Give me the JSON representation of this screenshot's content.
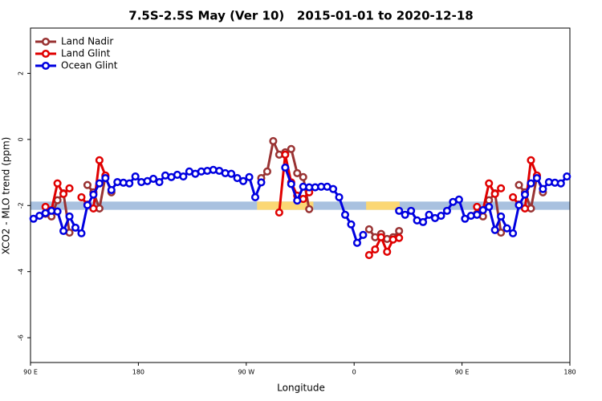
{
  "chart_data": {
    "type": "line",
    "title": "7.5S-2.5S May (Ver 10)   2015-01-01 to 2020-12-18",
    "x_label": "Longitude",
    "y_label": "XCO2 - MLO trend (ppm)",
    "xlim": [
      90,
      540
    ],
    "ylim": [
      -6.75,
      3.37
    ],
    "xticks": [
      {
        "value": 90,
        "label": "90 E"
      },
      {
        "value": 180,
        "label": "180"
      },
      {
        "value": 270,
        "label": "90 W"
      },
      {
        "value": 360,
        "label": "0"
      },
      {
        "value": 450,
        "label": "90 E"
      },
      {
        "value": 540,
        "label": "180"
      }
    ],
    "yticks": [
      -6,
      -4,
      -2,
      0,
      2
    ],
    "legend": "top-left",
    "bands": [
      {
        "from": 90,
        "to": 540,
        "y": [
          -2.13,
          -1.88
        ],
        "color": "#a9c1df"
      },
      {
        "from": 279,
        "to": 326,
        "y": [
          -2.13,
          -1.88
        ],
        "color": "#fbd774"
      },
      {
        "from": 370,
        "to": 398,
        "y": [
          -2.13,
          -1.88
        ],
        "color": "#fbd774"
      }
    ],
    "series": [
      {
        "name": "Land Nadir",
        "color": "#993333",
        "x": [
          102.5,
          107.5,
          112.5,
          117.5,
          122.5,
          127.5,
          137.5,
          142.5,
          147.5,
          152.5,
          157.5,
          162.5,
          282.5,
          287.5,
          292.5,
          297.5,
          302.5,
          307.5,
          312.5,
          317.5,
          322.5,
          327.5,
          372.5,
          377.5,
          382.5,
          387.5,
          392.5,
          397.5,
          402.5,
          462.5,
          467.5,
          472.5,
          477.5,
          482.5,
          487.5,
          497.5,
          502.5,
          507.5,
          512.5,
          517.5
        ],
        "values": [
          -2.25,
          -2.33,
          -1.84,
          -1.63,
          -2.82,
          null,
          -1.38,
          -1.6,
          -2.09,
          -1.12,
          -1.6,
          null,
          -1.17,
          -0.97,
          -0.05,
          -0.46,
          -0.39,
          -0.29,
          -1.02,
          -1.14,
          -2.11,
          null,
          -2.72,
          -2.96,
          -2.86,
          -3.01,
          -2.96,
          -2.77,
          null,
          -2.25,
          -2.33,
          -1.84,
          -1.63,
          -2.82,
          null,
          -1.38,
          -1.6,
          -2.09,
          -1.12,
          -1.6
        ]
      },
      {
        "name": "Land Glint",
        "color": "#e00000",
        "x": [
          102.5,
          107.5,
          112.5,
          117.5,
          122.5,
          127.5,
          132.5,
          137.5,
          142.5,
          147.5,
          152.5,
          157.5,
          297.5,
          302.5,
          307.5,
          312.5,
          317.5,
          322.5,
          327.5,
          372.5,
          377.5,
          382.5,
          387.5,
          392.5,
          397.5,
          402.5,
          462.5,
          467.5,
          472.5,
          477.5,
          482.5,
          487.5,
          492.5,
          497.5,
          502.5,
          507.5,
          512.5
        ],
        "values": [
          -2.04,
          -2.14,
          -1.33,
          -1.65,
          -1.48,
          null,
          -1.75,
          -1.97,
          -2.09,
          -0.63,
          -1.09,
          null,
          -2.21,
          -0.46,
          -1.3,
          -1.7,
          -1.8,
          -1.6,
          null,
          -3.5,
          -3.33,
          -2.96,
          -3.4,
          -3.03,
          -2.98,
          null,
          -2.04,
          -2.14,
          -1.33,
          -1.65,
          -1.48,
          null,
          -1.75,
          -1.97,
          -2.09,
          -0.63,
          -1.09
        ]
      },
      {
        "name": "Ocean Glint",
        "color": "#0000e0",
        "x": [
          92.5,
          97.5,
          102.5,
          107.5,
          112.5,
          117.5,
          122.5,
          127.5,
          132.5,
          137.5,
          142.5,
          147.5,
          152.5,
          157.5,
          162.5,
          167.5,
          172.5,
          177.5,
          182.5,
          187.5,
          192.5,
          197.5,
          202.5,
          207.5,
          212.5,
          217.5,
          222.5,
          227.5,
          232.5,
          237.5,
          242.5,
          247.5,
          252.5,
          257.5,
          262.5,
          267.5,
          272.5,
          277.5,
          282.5,
          287.5,
          302.5,
          307.5,
          312.5,
          317.5,
          322.5,
          327.5,
          332.5,
          337.5,
          342.5,
          347.5,
          352.5,
          357.5,
          362.5,
          367.5,
          372.5,
          397.5,
          402.5,
          407.5,
          412.5,
          417.5,
          422.5,
          427.5,
          432.5,
          437.5,
          442.5,
          447.5,
          452.5,
          457.5,
          462.5,
          467.5,
          472.5,
          477.5,
          482.5,
          487.5,
          492.5,
          497.5,
          502.5,
          507.5,
          512.5,
          517.5,
          522.5,
          527.5,
          532.5,
          537.5
        ],
        "values": [
          -2.4,
          -2.31,
          -2.23,
          -2.16,
          -2.18,
          -2.77,
          -2.33,
          -2.67,
          -2.84,
          -1.99,
          -1.67,
          -1.33,
          -1.17,
          -1.53,
          -1.29,
          -1.31,
          -1.33,
          -1.12,
          -1.29,
          -1.26,
          -1.19,
          -1.29,
          -1.09,
          -1.14,
          -1.07,
          -1.12,
          -0.97,
          -1.04,
          -0.97,
          -0.95,
          -0.92,
          -0.95,
          -1.02,
          -1.04,
          -1.17,
          -1.26,
          -1.14,
          -1.75,
          -1.3,
          null,
          -0.85,
          -1.35,
          -1.85,
          -1.43,
          -1.45,
          -1.45,
          -1.43,
          -1.43,
          -1.5,
          -1.75,
          -2.28,
          -2.57,
          -3.13,
          -2.89,
          null,
          -2.16,
          -2.28,
          -2.16,
          -2.45,
          -2.5,
          -2.28,
          -2.38,
          -2.31,
          -2.16,
          -1.89,
          -1.82,
          -2.4,
          -2.31,
          -2.28,
          -2.14,
          -2.04,
          -2.74,
          -2.33,
          -2.69,
          -2.84,
          -1.99,
          -1.67,
          -1.33,
          -1.17,
          -1.5,
          -1.29,
          -1.31,
          -1.33,
          -1.12
        ]
      }
    ]
  }
}
